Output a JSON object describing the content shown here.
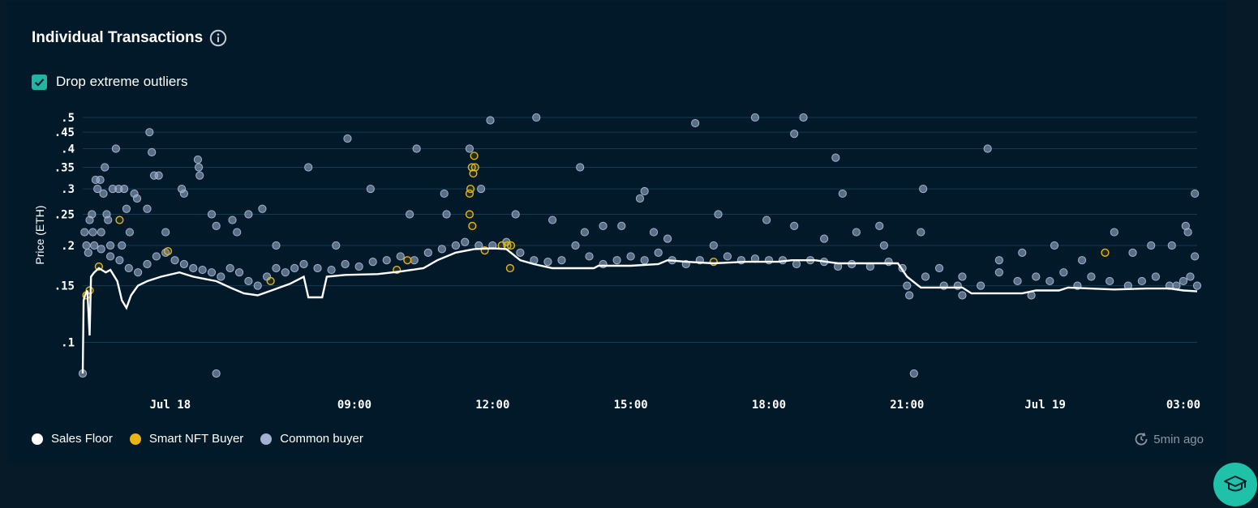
{
  "header": {
    "title": "Individual Transactions",
    "info_icon": "info-icon"
  },
  "filter": {
    "label": "Drop extreme outliers",
    "checked": true
  },
  "updated": {
    "icon": "refresh-clock-icon",
    "label": "5min ago"
  },
  "colors": {
    "background": "#02192a",
    "floor": "#ffffff",
    "smart": "#e8b512",
    "common": "#a3b3cf",
    "grid": "#17394f",
    "accent": "#1fb6a3"
  },
  "chart_data": {
    "type": "scatter",
    "ylabel": "Price (ETH)",
    "yscale": "log",
    "y_ticks": [
      {
        "value": 0.5,
        "label": ".5"
      },
      {
        "value": 0.45,
        "label": ".45"
      },
      {
        "value": 0.4,
        "label": ".4"
      },
      {
        "value": 0.35,
        "label": ".35"
      },
      {
        "value": 0.3,
        "label": ".3"
      },
      {
        "value": 0.25,
        "label": ".25"
      },
      {
        "value": 0.2,
        "label": ".2"
      },
      {
        "value": 0.15,
        "label": ".15"
      },
      {
        "value": 0.1,
        "label": ".1"
      }
    ],
    "x_ticks": [
      {
        "value": 5.0,
        "label": "Jul 18"
      },
      {
        "value": 9.0,
        "label": "09:00"
      },
      {
        "value": 12.0,
        "label": "12:00"
      },
      {
        "value": 15.0,
        "label": "15:00"
      },
      {
        "value": 18.0,
        "label": "18:00"
      },
      {
        "value": 21.0,
        "label": "21:00"
      },
      {
        "value": 24.0,
        "label": "Jul 19"
      },
      {
        "value": 27.0,
        "label": "03:00"
      }
    ],
    "x_unit_note": "hours since Jul 17 00:00 axis origin",
    "xlim": [
      3.1,
      27.3
    ],
    "ylim": [
      0.08,
      0.5
    ],
    "grid": true,
    "legend_position": "bottom-left",
    "series": [
      {
        "name": "Sales Floor",
        "type": "line",
        "points": [
          [
            3.1,
            0.08
          ],
          [
            3.12,
            0.135
          ],
          [
            3.15,
            0.14
          ],
          [
            3.2,
            0.145
          ],
          [
            3.25,
            0.105
          ],
          [
            3.28,
            0.16
          ],
          [
            3.35,
            0.165
          ],
          [
            3.45,
            0.17
          ],
          [
            3.6,
            0.165
          ],
          [
            3.7,
            0.168
          ],
          [
            3.85,
            0.155
          ],
          [
            3.95,
            0.135
          ],
          [
            4.05,
            0.128
          ],
          [
            4.15,
            0.14
          ],
          [
            4.3,
            0.15
          ],
          [
            4.5,
            0.155
          ],
          [
            4.8,
            0.16
          ],
          [
            5.2,
            0.165
          ],
          [
            5.5,
            0.16
          ],
          [
            6.0,
            0.155
          ],
          [
            6.3,
            0.148
          ],
          [
            6.6,
            0.142
          ],
          [
            6.9,
            0.14
          ],
          [
            7.2,
            0.145
          ],
          [
            7.6,
            0.152
          ],
          [
            7.9,
            0.16
          ],
          [
            8.0,
            0.138
          ],
          [
            8.3,
            0.138
          ],
          [
            8.4,
            0.16
          ],
          [
            8.8,
            0.162
          ],
          [
            9.5,
            0.163
          ],
          [
            10.0,
            0.166
          ],
          [
            10.5,
            0.17
          ],
          [
            10.8,
            0.18
          ],
          [
            11.2,
            0.19
          ],
          [
            11.6,
            0.195
          ],
          [
            12.0,
            0.196
          ],
          [
            12.3,
            0.195
          ],
          [
            12.6,
            0.18
          ],
          [
            12.9,
            0.175
          ],
          [
            13.3,
            0.17
          ],
          [
            14.2,
            0.17
          ],
          [
            14.3,
            0.173
          ],
          [
            15.0,
            0.173
          ],
          [
            15.6,
            0.175
          ],
          [
            15.8,
            0.18
          ],
          [
            16.2,
            0.178
          ],
          [
            16.8,
            0.176
          ],
          [
            17.5,
            0.178
          ],
          [
            18.2,
            0.178
          ],
          [
            18.5,
            0.18
          ],
          [
            19.0,
            0.18
          ],
          [
            19.5,
            0.176
          ],
          [
            20.8,
            0.176
          ],
          [
            21.0,
            0.16
          ],
          [
            21.3,
            0.148
          ],
          [
            22.2,
            0.148
          ],
          [
            22.4,
            0.142
          ],
          [
            23.5,
            0.142
          ],
          [
            23.8,
            0.145
          ],
          [
            24.3,
            0.145
          ],
          [
            24.5,
            0.148
          ],
          [
            25.5,
            0.146
          ],
          [
            26.2,
            0.147
          ],
          [
            26.7,
            0.147
          ],
          [
            27.0,
            0.145
          ],
          [
            27.3,
            0.144
          ]
        ]
      },
      {
        "name": "Smart NFT Buyer",
        "type": "scatter",
        "points": [
          [
            3.18,
            0.14
          ],
          [
            3.25,
            0.145
          ],
          [
            3.45,
            0.172
          ],
          [
            3.9,
            0.24
          ],
          [
            4.95,
            0.192
          ],
          [
            7.18,
            0.155
          ],
          [
            9.92,
            0.168
          ],
          [
            10.15,
            0.18
          ],
          [
            11.5,
            0.25
          ],
          [
            11.52,
            0.3
          ],
          [
            11.55,
            0.35
          ],
          [
            11.6,
            0.38
          ],
          [
            11.58,
            0.335
          ],
          [
            11.5,
            0.29
          ],
          [
            11.56,
            0.23
          ],
          [
            11.62,
            0.35
          ],
          [
            11.83,
            0.193
          ],
          [
            12.2,
            0.2
          ],
          [
            12.32,
            0.2
          ],
          [
            12.38,
            0.17
          ],
          [
            12.4,
            0.2
          ],
          [
            16.8,
            0.178
          ],
          [
            25.3,
            0.19
          ]
        ]
      },
      {
        "name": "Common buyer",
        "type": "scatter",
        "points": [
          [
            3.1,
            0.08
          ],
          [
            3.14,
            0.22
          ],
          [
            3.18,
            0.2
          ],
          [
            3.22,
            0.19
          ],
          [
            3.25,
            0.24
          ],
          [
            3.3,
            0.25
          ],
          [
            3.32,
            0.22
          ],
          [
            3.38,
            0.32
          ],
          [
            3.42,
            0.3
          ],
          [
            3.48,
            0.32
          ],
          [
            3.5,
            0.22
          ],
          [
            3.55,
            0.29
          ],
          [
            3.58,
            0.35
          ],
          [
            3.62,
            0.25
          ],
          [
            3.65,
            0.24
          ],
          [
            3.7,
            0.2
          ],
          [
            3.75,
            0.3
          ],
          [
            3.82,
            0.4
          ],
          [
            3.88,
            0.3
          ],
          [
            3.95,
            0.2
          ],
          [
            4.0,
            0.3
          ],
          [
            4.05,
            0.26
          ],
          [
            4.12,
            0.22
          ],
          [
            4.22,
            0.29
          ],
          [
            4.28,
            0.28
          ],
          [
            4.5,
            0.26
          ],
          [
            4.55,
            0.45
          ],
          [
            4.6,
            0.39
          ],
          [
            4.65,
            0.33
          ],
          [
            4.75,
            0.33
          ],
          [
            4.9,
            0.22
          ],
          [
            5.25,
            0.3
          ],
          [
            5.3,
            0.29
          ],
          [
            5.6,
            0.37
          ],
          [
            5.62,
            0.35
          ],
          [
            5.64,
            0.33
          ],
          [
            5.9,
            0.25
          ],
          [
            6.0,
            0.23
          ],
          [
            6.0,
            0.08
          ],
          [
            6.35,
            0.24
          ],
          [
            6.45,
            0.22
          ],
          [
            6.7,
            0.25
          ],
          [
            7.0,
            0.26
          ],
          [
            7.3,
            0.2
          ],
          [
            8.0,
            0.35
          ],
          [
            8.6,
            0.2
          ],
          [
            8.85,
            0.43
          ],
          [
            9.35,
            0.3
          ],
          [
            10.2,
            0.25
          ],
          [
            10.35,
            0.4
          ],
          [
            10.95,
            0.29
          ],
          [
            11.0,
            0.25
          ],
          [
            11.5,
            0.4
          ],
          [
            11.75,
            0.3
          ],
          [
            11.95,
            0.49
          ],
          [
            12.5,
            0.25
          ],
          [
            12.95,
            0.5
          ],
          [
            13.3,
            0.24
          ],
          [
            13.9,
            0.35
          ],
          [
            14.0,
            0.22
          ],
          [
            14.4,
            0.23
          ],
          [
            14.8,
            0.23
          ],
          [
            15.2,
            0.28
          ],
          [
            15.3,
            0.295
          ],
          [
            15.5,
            0.22
          ],
          [
            15.8,
            0.21
          ],
          [
            16.4,
            0.48
          ],
          [
            16.9,
            0.25
          ],
          [
            17.7,
            0.5
          ],
          [
            17.95,
            0.24
          ],
          [
            18.55,
            0.23
          ],
          [
            18.55,
            0.445
          ],
          [
            18.75,
            0.5
          ],
          [
            19.2,
            0.21
          ],
          [
            19.45,
            0.375
          ],
          [
            19.6,
            0.29
          ],
          [
            19.9,
            0.22
          ],
          [
            20.4,
            0.23
          ],
          [
            20.5,
            0.2
          ],
          [
            21.0,
            0.15
          ],
          [
            21.05,
            0.14
          ],
          [
            21.15,
            0.08
          ],
          [
            21.3,
            0.22
          ],
          [
            21.35,
            0.3
          ],
          [
            21.7,
            0.17
          ],
          [
            22.1,
            0.15
          ],
          [
            22.2,
            0.14
          ],
          [
            22.75,
            0.4
          ],
          [
            23.0,
            0.18
          ],
          [
            23.5,
            0.19
          ],
          [
            23.7,
            0.14
          ],
          [
            24.2,
            0.2
          ],
          [
            24.8,
            0.18
          ],
          [
            25.5,
            0.22
          ],
          [
            25.9,
            0.19
          ],
          [
            26.3,
            0.2
          ],
          [
            26.75,
            0.2
          ],
          [
            26.85,
            0.15
          ],
          [
            27.05,
            0.23
          ],
          [
            27.1,
            0.22
          ],
          [
            27.25,
            0.29
          ],
          [
            27.3,
            0.15
          ],
          [
            27.25,
            0.185
          ],
          [
            27.15,
            0.16
          ],
          [
            3.35,
            0.2
          ],
          [
            3.5,
            0.195
          ],
          [
            3.7,
            0.185
          ],
          [
            3.9,
            0.18
          ],
          [
            4.1,
            0.17
          ],
          [
            4.3,
            0.165
          ],
          [
            4.5,
            0.175
          ],
          [
            4.7,
            0.185
          ],
          [
            4.9,
            0.19
          ],
          [
            5.1,
            0.18
          ],
          [
            5.3,
            0.175
          ],
          [
            5.5,
            0.17
          ],
          [
            5.7,
            0.168
          ],
          [
            5.9,
            0.165
          ],
          [
            6.1,
            0.16
          ],
          [
            6.3,
            0.17
          ],
          [
            6.5,
            0.165
          ],
          [
            6.7,
            0.155
          ],
          [
            6.9,
            0.15
          ],
          [
            7.1,
            0.16
          ],
          [
            7.3,
            0.17
          ],
          [
            7.5,
            0.165
          ],
          [
            7.7,
            0.17
          ],
          [
            7.9,
            0.175
          ],
          [
            8.2,
            0.17
          ],
          [
            8.5,
            0.168
          ],
          [
            8.8,
            0.175
          ],
          [
            9.1,
            0.172
          ],
          [
            9.4,
            0.178
          ],
          [
            9.7,
            0.18
          ],
          [
            10.0,
            0.185
          ],
          [
            10.3,
            0.18
          ],
          [
            10.6,
            0.19
          ],
          [
            10.9,
            0.195
          ],
          [
            11.2,
            0.2
          ],
          [
            11.4,
            0.205
          ],
          [
            11.7,
            0.2
          ],
          [
            12.0,
            0.2
          ],
          [
            12.3,
            0.205
          ],
          [
            12.6,
            0.19
          ],
          [
            12.9,
            0.18
          ],
          [
            13.2,
            0.178
          ],
          [
            13.5,
            0.18
          ],
          [
            13.8,
            0.2
          ],
          [
            14.1,
            0.185
          ],
          [
            14.4,
            0.175
          ],
          [
            14.7,
            0.18
          ],
          [
            15.0,
            0.185
          ],
          [
            15.3,
            0.18
          ],
          [
            15.6,
            0.19
          ],
          [
            15.9,
            0.18
          ],
          [
            16.2,
            0.175
          ],
          [
            16.5,
            0.18
          ],
          [
            16.8,
            0.2
          ],
          [
            17.1,
            0.185
          ],
          [
            17.4,
            0.18
          ],
          [
            17.7,
            0.182
          ],
          [
            18.0,
            0.18
          ],
          [
            18.3,
            0.18
          ],
          [
            18.6,
            0.175
          ],
          [
            18.9,
            0.18
          ],
          [
            19.2,
            0.178
          ],
          [
            19.5,
            0.172
          ],
          [
            19.8,
            0.175
          ],
          [
            20.2,
            0.172
          ],
          [
            20.6,
            0.178
          ],
          [
            20.9,
            0.17
          ],
          [
            21.4,
            0.16
          ],
          [
            21.8,
            0.15
          ],
          [
            22.2,
            0.16
          ],
          [
            22.6,
            0.15
          ],
          [
            23.0,
            0.165
          ],
          [
            23.4,
            0.155
          ],
          [
            23.8,
            0.16
          ],
          [
            24.1,
            0.155
          ],
          [
            24.4,
            0.165
          ],
          [
            24.7,
            0.15
          ],
          [
            25.0,
            0.16
          ],
          [
            25.4,
            0.155
          ],
          [
            25.8,
            0.15
          ],
          [
            26.1,
            0.155
          ],
          [
            26.4,
            0.16
          ],
          [
            26.7,
            0.15
          ],
          [
            27.0,
            0.155
          ]
        ]
      }
    ]
  },
  "legend": [
    {
      "label": "Sales Floor",
      "color": "#ffffff"
    },
    {
      "label": "Smart NFT Buyer",
      "color": "#e8b512"
    },
    {
      "label": "Common buyer",
      "color": "#a3b3cf"
    }
  ],
  "fab": {
    "icon": "graduation-cap-icon"
  }
}
